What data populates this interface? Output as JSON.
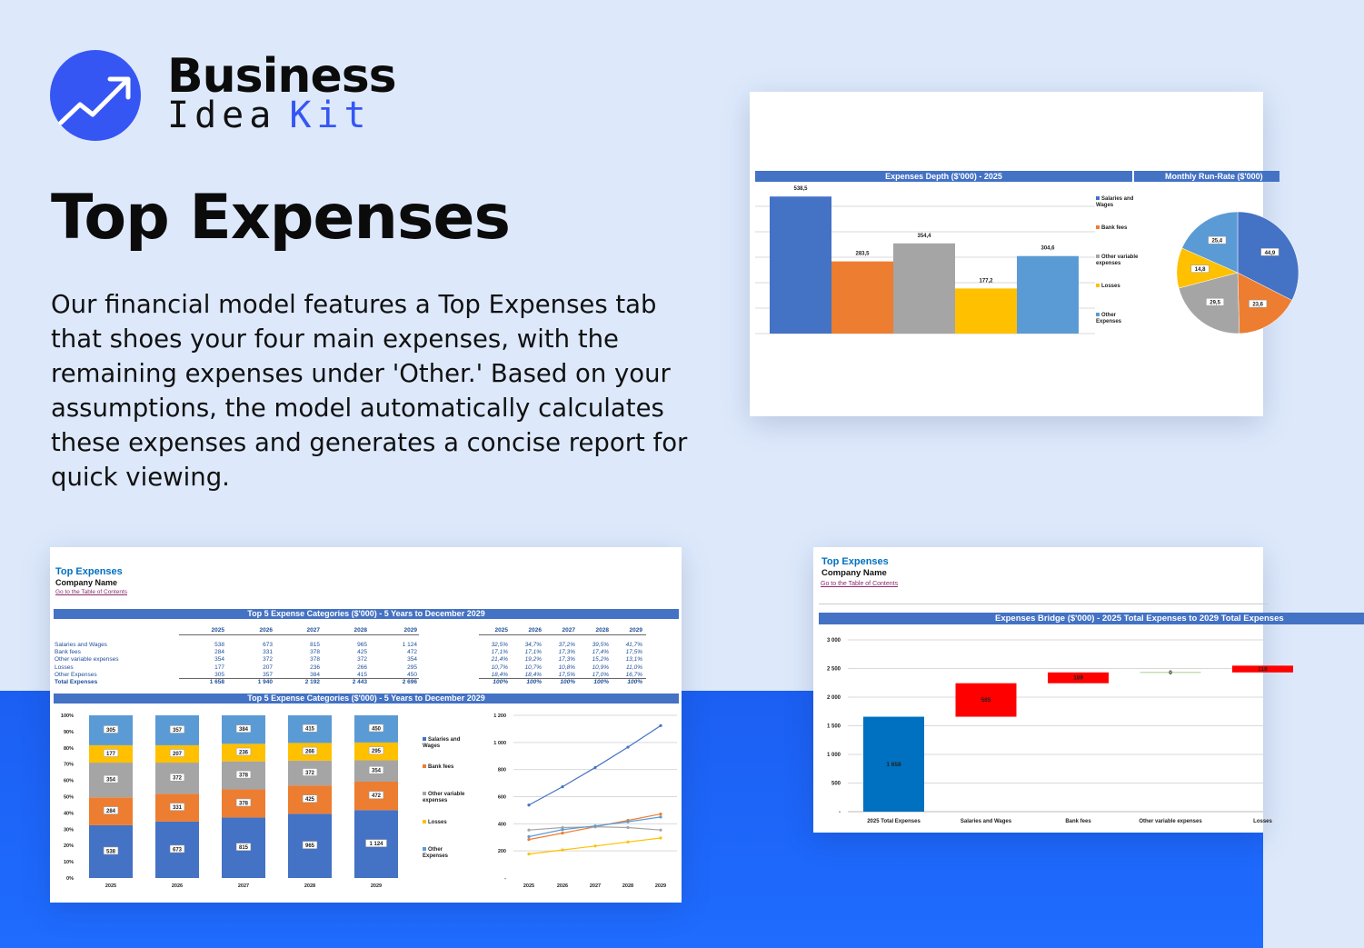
{
  "brand": {
    "line1": "Business",
    "line2a": "Idea",
    "line2b": "Kit"
  },
  "headline": "Top Expenses",
  "description": "Our financial model features a Top Expenses tab that shoes your four main expenses, with the remaining expenses under 'Other.' Based on your assumptions, the model automatically calculates these expenses and generates a concise report for quick viewing.",
  "colors": {
    "brand_blue": "#3656f4",
    "band_blue": "#1f6cff",
    "header_bar": "#4472c4",
    "series": [
      "#4472c4",
      "#ed7d31",
      "#a5a5a5",
      "#ffc000",
      "#5b9bd5"
    ],
    "waterfall_total": "#0070c0",
    "waterfall_increase": "#ff0000"
  },
  "categories_names": [
    "Salaries and Wages",
    "Bank fees",
    "Other variable expenses",
    "Losses",
    "Other Expenses"
  ],
  "sheet": {
    "title": "Top Expenses",
    "company": "Company Name",
    "link": "Go to the Table of Contents"
  },
  "depth_card": {
    "title": "Expenses Depth ($'000) - 2025",
    "title2": "Monthly Run-Rate ($'000)"
  },
  "table": {
    "title": "Top 5 Expense Categories ($'000) - 5 Years to December 2029",
    "years": [
      "2025",
      "2026",
      "2027",
      "2028",
      "2029"
    ],
    "rows": [
      {
        "label": "Salaries and Wages",
        "values": [
          "538",
          "673",
          "815",
          "965",
          "1 124"
        ],
        "pct": [
          "32,5%",
          "34,7%",
          "37,2%",
          "39,5%",
          "41,7%"
        ]
      },
      {
        "label": "Bank fees",
        "values": [
          "284",
          "331",
          "378",
          "425",
          "472"
        ],
        "pct": [
          "17,1%",
          "17,1%",
          "17,3%",
          "17,4%",
          "17,5%"
        ]
      },
      {
        "label": "Other variable expenses",
        "values": [
          "354",
          "372",
          "378",
          "372",
          "354"
        ],
        "pct": [
          "21,4%",
          "19,2%",
          "17,3%",
          "15,2%",
          "13,1%"
        ]
      },
      {
        "label": "Losses",
        "values": [
          "177",
          "207",
          "236",
          "266",
          "295"
        ],
        "pct": [
          "10,7%",
          "10,7%",
          "10,8%",
          "10,9%",
          "11,0%"
        ]
      },
      {
        "label": "Other Expenses",
        "values": [
          "305",
          "357",
          "384",
          "415",
          "450"
        ],
        "pct": [
          "18,4%",
          "18,4%",
          "17,5%",
          "17,0%",
          "16,7%"
        ]
      }
    ],
    "total": {
      "label": "Total Expenses",
      "values": [
        "1 658",
        "1 940",
        "2 192",
        "2 443",
        "2 696"
      ],
      "pct": [
        "100%",
        "100%",
        "100%",
        "100%",
        "100%"
      ]
    }
  },
  "charts_title": "Top 5 Expense Categories ($'000) - 5 Years to December 2029",
  "bridge_card": {
    "title": "Expenses Bridge ($'000) - 2025 Total Expenses to 2029 Total Expenses"
  },
  "chart_data": [
    {
      "type": "bar",
      "title": "Expenses Depth ($'000) - 2025",
      "categories": [
        "Salaries and Wages",
        "Bank fees",
        "Other variable expenses",
        "Losses",
        "Other Expenses"
      ],
      "values": [
        538.5,
        283.5,
        354.4,
        177.2,
        304.6
      ],
      "labels": [
        "538,5",
        "283,5",
        "354,4",
        "177,2",
        "304,6"
      ],
      "legend": "right",
      "grid": true
    },
    {
      "type": "pie",
      "title": "Monthly Run-Rate ($'000)",
      "categories": [
        "Salaries and Wages",
        "Bank fees",
        "Other variable expenses",
        "Losses",
        "Other Expenses"
      ],
      "values": [
        44.9,
        23.6,
        29.5,
        14.8,
        25.4
      ],
      "labels": [
        "44,9",
        "23,6",
        "29,5",
        "14,8",
        "25,4"
      ]
    },
    {
      "type": "bar",
      "stacked": "percent",
      "categories": [
        "2025",
        "2026",
        "2027",
        "2028",
        "2029"
      ],
      "series": [
        {
          "name": "Salaries and Wages",
          "values": [
            538,
            673,
            815,
            965,
            1124
          ],
          "labels": [
            "538",
            "673",
            "815",
            "965",
            "1 124"
          ]
        },
        {
          "name": "Bank fees",
          "values": [
            284,
            331,
            378,
            425,
            472
          ],
          "labels": [
            "284",
            "331",
            "378",
            "425",
            "472"
          ]
        },
        {
          "name": "Other variable expenses",
          "values": [
            354,
            372,
            378,
            372,
            354
          ],
          "labels": [
            "354",
            "372",
            "378",
            "372",
            "354"
          ]
        },
        {
          "name": "Losses",
          "values": [
            177,
            207,
            236,
            266,
            295
          ],
          "labels": [
            "177",
            "207",
            "236",
            "266",
            "295"
          ]
        },
        {
          "name": "Other Expenses",
          "values": [
            305,
            357,
            384,
            415,
            450
          ],
          "labels": [
            "305",
            "357",
            "384",
            "415",
            "450"
          ]
        }
      ],
      "yticks": [
        "0%",
        "10%",
        "20%",
        "30%",
        "40%",
        "50%",
        "60%",
        "70%",
        "80%",
        "90%",
        "100%"
      ],
      "legend": "right",
      "ylim": [
        0,
        100
      ]
    },
    {
      "type": "line",
      "categories": [
        "2025",
        "2026",
        "2027",
        "2028",
        "2029"
      ],
      "series": [
        {
          "name": "Salaries and Wages",
          "values": [
            538,
            673,
            815,
            965,
            1124
          ]
        },
        {
          "name": "Bank fees",
          "values": [
            284,
            331,
            378,
            425,
            472
          ]
        },
        {
          "name": "Other variable expenses",
          "values": [
            354,
            372,
            378,
            372,
            354
          ]
        },
        {
          "name": "Losses",
          "values": [
            177,
            207,
            236,
            266,
            295
          ]
        },
        {
          "name": "Other Expenses",
          "values": [
            305,
            357,
            384,
            415,
            450
          ]
        }
      ],
      "yticks": [
        "-",
        "200",
        "400",
        "600",
        "800",
        "1 000",
        "1 200"
      ],
      "ylim": [
        0,
        1200
      ],
      "grid": true
    },
    {
      "type": "bar",
      "subtype": "waterfall",
      "title": "Expenses Bridge ($'000) - 2025 Total Expenses to 2029 Total Expenses",
      "categories": [
        "2025 Total Expenses",
        "Salaries and Wages",
        "Bank fees",
        "Other variable expenses",
        "Losses"
      ],
      "values": [
        1658,
        585,
        189,
        0,
        118
      ],
      "labels": [
        "1 658",
        "585",
        "189",
        "0",
        "118"
      ],
      "yticks": [
        "-",
        "500",
        "1 000",
        "1 500",
        "2 000",
        "2 500",
        "3 000"
      ],
      "ylim": [
        0,
        3000
      ],
      "grid": true
    }
  ]
}
